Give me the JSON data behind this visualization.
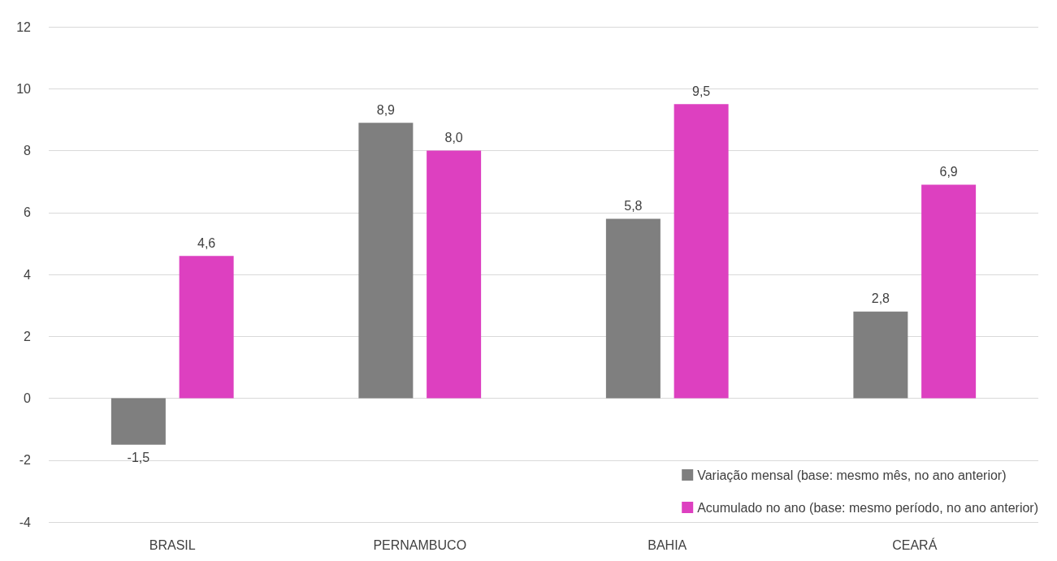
{
  "chart_data": {
    "type": "bar",
    "categories": [
      "BRASIL",
      "PERNAMBUCO",
      "BAHIA",
      "CEARÁ"
    ],
    "series": [
      {
        "name": "Variação mensal (base: mesmo mês, no ano anterior)",
        "color": "#7f7f7f",
        "values": [
          -1.5,
          8.9,
          5.8,
          2.8
        ],
        "value_labels": [
          "-1,5",
          "8,9",
          "5,8",
          "2,8"
        ]
      },
      {
        "name": "Acumulado no ano (base: mesmo período, no ano anterior)",
        "color": "#dd40c0",
        "values": [
          4.6,
          8.0,
          9.5,
          6.9
        ],
        "value_labels": [
          "4,6",
          "8,0",
          "9,5",
          "6,9"
        ]
      }
    ],
    "ylim": [
      -4,
      12
    ],
    "yticks": [
      -4,
      -2,
      0,
      2,
      4,
      6,
      8,
      10,
      12
    ],
    "grid": "y",
    "legend": "bottom right"
  }
}
